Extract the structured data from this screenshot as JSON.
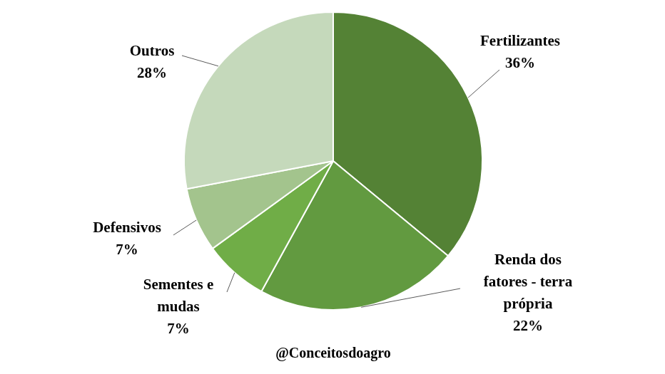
{
  "chart_data": {
    "type": "pie",
    "categories": [
      "Fertilizantes",
      "Renda dos fatores - terra própria",
      "Sementes e mudas",
      "Defensivos",
      "Outros"
    ],
    "values": [
      36,
      22,
      7,
      7,
      28
    ],
    "value_labels": [
      "36%",
      "22%",
      "7%",
      "7%",
      "28%"
    ],
    "colors": [
      "#548235",
      "#629a40",
      "#70ad47",
      "#a3c48d",
      "#c5d9bb"
    ],
    "data_labels": true,
    "annotations": [
      "@Conceitosdoagro"
    ]
  }
}
